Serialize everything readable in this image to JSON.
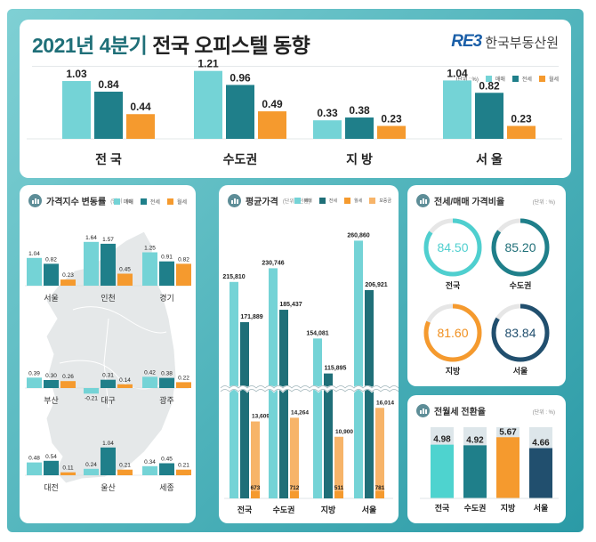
{
  "header": {
    "title_accent": "2021년 4분기",
    "title_rest": " 전국 오피스텔 동향",
    "logo_mark": "RE3",
    "logo_text": "한국부동산원"
  },
  "legend": {
    "unit": "(단위 : %)",
    "sale": "매매",
    "jeonse": "전세",
    "monthly": "월세",
    "deposit": "보증금"
  },
  "colors": {
    "sale": "#74d3d6",
    "jeonse": "#1f7f8a",
    "monthly": "#f59a2e",
    "deposit": "#f7b469",
    "seoul_dark": "#214f6e",
    "map_fill": "#e5e8e9",
    "ring_track": "#e6e6e6"
  },
  "chart_data": [
    {
      "id": "overall-change",
      "type": "bar",
      "title": "2021년 4분기 전국 오피스텔 동향",
      "unit": "%",
      "categories": [
        "전 국",
        "수도권",
        "지 방",
        "서 울"
      ],
      "series": [
        {
          "name": "매매",
          "values": [
            1.03,
            1.21,
            0.33,
            1.04
          ]
        },
        {
          "name": "전세",
          "values": [
            0.84,
            0.96,
            0.38,
            0.82
          ]
        },
        {
          "name": "월세",
          "values": [
            0.44,
            0.49,
            0.23,
            0.23
          ]
        }
      ],
      "ylim": [
        0,
        1.3
      ],
      "legend": "top-right"
    },
    {
      "id": "regional-index-change",
      "type": "bar",
      "title": "가격지수 변동률",
      "unit": "(단위 : %)",
      "categories": [
        "서울",
        "인천",
        "경기",
        "부산",
        "대구",
        "광주",
        "대전",
        "울산",
        "세종"
      ],
      "series": [
        {
          "name": "매매",
          "values": [
            1.04,
            1.64,
            1.25,
            0.39,
            -0.21,
            0.42,
            0.48,
            0.24,
            0.34
          ]
        },
        {
          "name": "전세",
          "values": [
            0.82,
            1.57,
            0.91,
            0.3,
            0.31,
            0.38,
            0.54,
            1.04,
            0.45
          ]
        },
        {
          "name": "월세",
          "values": [
            0.23,
            0.45,
            0.82,
            0.26,
            0.14,
            0.22,
            0.11,
            0.21,
            0.21
          ]
        }
      ],
      "legend": "top-right"
    },
    {
      "id": "average-price",
      "type": "bar",
      "title": "평균가격",
      "unit": "(단위 : 천원)",
      "categories": [
        "전국",
        "수도권",
        "지방",
        "서울"
      ],
      "series": [
        {
          "name": "매매",
          "values": [
            215810,
            230746,
            154081,
            260860
          ]
        },
        {
          "name": "전세",
          "values": [
            171889,
            185437,
            115895,
            206921
          ]
        },
        {
          "name": "월세",
          "values": [
            673,
            712,
            511,
            781
          ]
        },
        {
          "name": "보증금",
          "values": [
            13609,
            14264,
            10900,
            16014
          ]
        }
      ],
      "labels": {
        "sale": [
          "215,810",
          "230,746",
          "154,081",
          "260,860"
        ],
        "jeonse": [
          "171,889",
          "185,437",
          "115,895",
          "206,921"
        ],
        "monthly": [
          "673",
          "712",
          "511",
          "781"
        ],
        "deposit": [
          "13,609",
          "14,264",
          "10,900",
          "16,014"
        ]
      },
      "axis_break": true,
      "legend": "top-right"
    },
    {
      "id": "jeonse-sale-ratio",
      "type": "pie",
      "title": "전세/매매 가격비율",
      "unit": "(단위 : %)",
      "categories": [
        "전국",
        "수도권",
        "지방",
        "서울"
      ],
      "values": [
        84.5,
        85.2,
        81.6,
        83.84
      ],
      "labels": [
        "84.50",
        "85.20",
        "81.60",
        "83.84"
      ]
    },
    {
      "id": "conversion-rate",
      "type": "bar",
      "title": "전월세 전환율",
      "unit": "(단위 : %)",
      "categories": [
        "전국",
        "수도권",
        "지방",
        "서울"
      ],
      "values": [
        4.98,
        4.92,
        5.67,
        4.66
      ],
      "labels": [
        "4.98",
        "4.92",
        "5.67",
        "4.66"
      ],
      "ylim": [
        0,
        6.6
      ]
    }
  ]
}
